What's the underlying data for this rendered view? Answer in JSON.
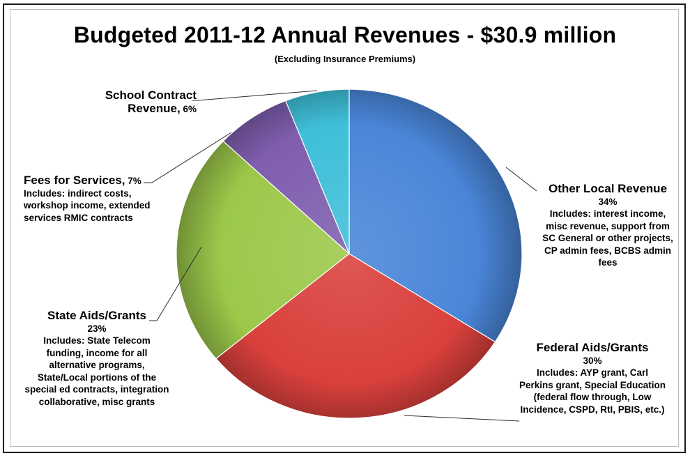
{
  "colors": {
    "other_local": "#4a86d8",
    "federal": "#d9403c",
    "state": "#9cc84a",
    "fees": "#7f5eae",
    "school": "#3fbfd9"
  },
  "chart_data": {
    "type": "pie",
    "title": "Budgeted 2011-12 Annual Revenues - $30.9 million",
    "subtitle": "(Excluding Insurance Premiums)",
    "slices": [
      {
        "key": "other_local",
        "name": "Other Local Revenue",
        "value": 34,
        "pct_label": "34%",
        "desc": "Includes:  interest income, misc revenue, support from SC General or other projects, CP admin fees, BCBS admin fees",
        "color": "#4a86d8"
      },
      {
        "key": "federal",
        "name": "Federal Aids/Grants",
        "value": 30,
        "pct_label": "30%",
        "desc": "Includes:  AYP grant, Carl Perkins grant, Special Education (federal flow through, Low Incidence, CSPD, RtI, PBIS, etc.)",
        "color": "#d9403c"
      },
      {
        "key": "state",
        "name": "State Aids/Grants",
        "value": 23,
        "pct_label": "23%",
        "desc": "Includes:  State Telecom funding, income for all alternative programs, State/Local portions of the special ed contracts, integration collaborative, misc grants",
        "color": "#9cc84a"
      },
      {
        "key": "fees",
        "name": "Fees for Services,",
        "value": 7,
        "pct_label": "7%",
        "desc": "Includes:  indirect costs, workshop income, extended services RMIC contracts",
        "color": "#7f5eae"
      },
      {
        "key": "school",
        "name": "School Contract Revenue,",
        "value": 6,
        "pct_label": "6%",
        "desc": "",
        "color": "#3fbfd9"
      }
    ]
  }
}
